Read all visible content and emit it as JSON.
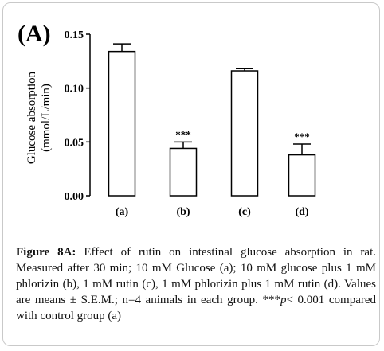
{
  "panel_label": "(A)",
  "chart_data": {
    "type": "bar",
    "categories": [
      "(a)",
      "(b)",
      "(c)",
      "(d)"
    ],
    "values": [
      0.134,
      0.044,
      0.116,
      0.038
    ],
    "errors": [
      0.007,
      0.006,
      0.002,
      0.01
    ],
    "annotations": [
      "",
      "***",
      "",
      "***"
    ],
    "title": "",
    "xlabel": "",
    "ylabel": "Glucose absorption",
    "ylabel_unit": "(mmol/L/min)",
    "ylim": [
      0,
      0.15
    ],
    "yticks": [
      {
        "value": 0.0,
        "label": "0.00"
      },
      {
        "value": 0.05,
        "label": "0.05"
      },
      {
        "value": 0.1,
        "label": "0.10"
      },
      {
        "value": 0.15,
        "label": "0.15"
      }
    ],
    "grid": false,
    "bar_fill": "#ffffff",
    "bar_stroke": "#000000"
  },
  "caption": {
    "figure_label": "Figure 8A:",
    "text1": " Effect of rutin on intestinal glucose absorption in rat. Measured after 30 min; 10 mM Glucose (a); 10 mM glucose plus 1 mM phlorizin (b), 1 mM rutin (c), 1 mM phlorizin plus 1 mM rutin (d). Values are means ± S.E.M.; n=4 animals in each group. ***",
    "p_symbol": "p",
    "text2": "< 0.001 compared with control group (a)"
  }
}
